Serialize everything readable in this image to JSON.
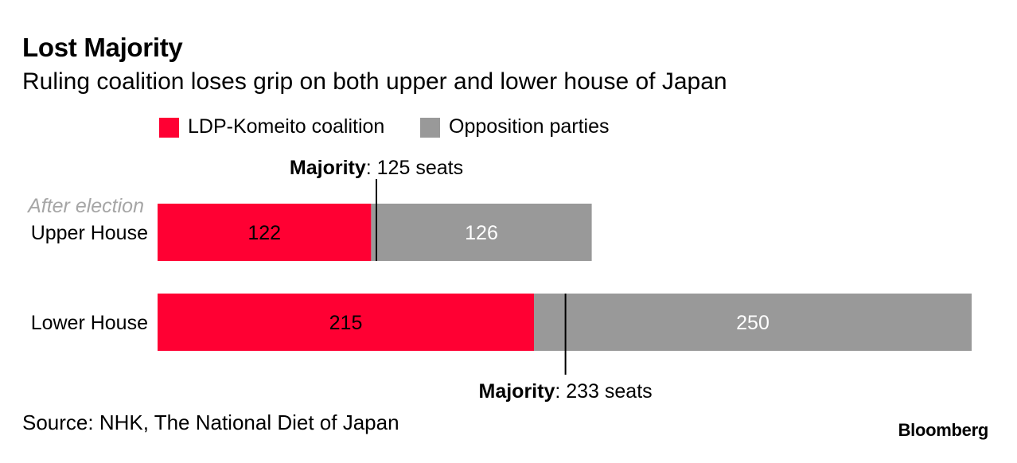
{
  "header": {
    "title": "Lost Majority",
    "subtitle": "Ruling coalition loses grip on both upper and lower house of Japan"
  },
  "footer": {
    "source": "Source: NHK, The National Diet of Japan",
    "brand": "Bloomberg"
  },
  "colors": {
    "coalition": "#ff0033",
    "opposition": "#999999",
    "marker": "#000000",
    "note": "#a6a6a6"
  },
  "chart_data": {
    "type": "bar",
    "orientation": "horizontal",
    "stacked": true,
    "legend_position": "top",
    "grid": false,
    "categories": [
      "Upper House",
      "Lower House"
    ],
    "category_note": "After election",
    "series": [
      {
        "name": "LDP-Komeito coalition",
        "values": [
          122,
          215
        ]
      },
      {
        "name": "Opposition parties",
        "values": [
          126,
          250
        ]
      }
    ],
    "majority_markers": [
      {
        "category": "Upper House",
        "value": 125,
        "label_bold": "Majority",
        "label_rest": ": 125 seats",
        "label_side": "top"
      },
      {
        "category": "Lower House",
        "value": 233,
        "label_bold": "Majority",
        "label_rest": ": 233 seats",
        "label_side": "bottom"
      }
    ],
    "xlim": [
      0,
      465
    ]
  }
}
